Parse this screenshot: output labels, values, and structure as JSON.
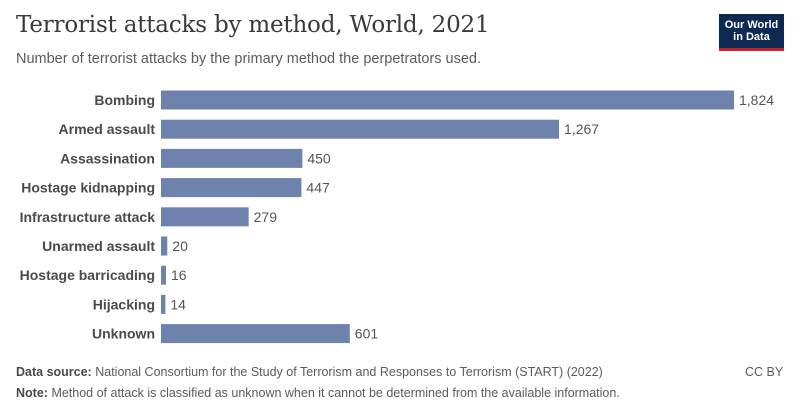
{
  "header": {
    "title": "Terrorist attacks by method, World, 2021",
    "subtitle": "Number of terrorist attacks by the primary method the perpetrators used.",
    "logo_line1": "Our World",
    "logo_line2": "in Data"
  },
  "footer": {
    "source_label": "Data source:",
    "source_text": "National Consortium for the Study of Terrorism and Responses to Terrorism (START) (2022)",
    "note_label": "Note:",
    "note_text": "Method of attack is classified as unknown when it cannot be determined from the available information.",
    "license": "CC BY"
  },
  "colors": {
    "bar": "#6d83ad",
    "brand": "#0e2a52",
    "brand_accent": "#c8202f"
  },
  "chart_data": {
    "type": "bar",
    "orientation": "horizontal",
    "title": "Terrorist attacks by method, World, 2021",
    "categories": [
      "Bombing",
      "Armed assault",
      "Assassination",
      "Hostage kidnapping",
      "Infrastructure attack",
      "Unarmed assault",
      "Hostage barricading",
      "Hijacking",
      "Unknown"
    ],
    "values": [
      1824,
      1267,
      450,
      447,
      279,
      20,
      16,
      14,
      601
    ],
    "value_labels": [
      "1,824",
      "1,267",
      "450",
      "447",
      "279",
      "20",
      "16",
      "14",
      "601"
    ],
    "xlim": [
      0,
      1824
    ],
    "grid": false,
    "xlabel": "",
    "ylabel": ""
  }
}
